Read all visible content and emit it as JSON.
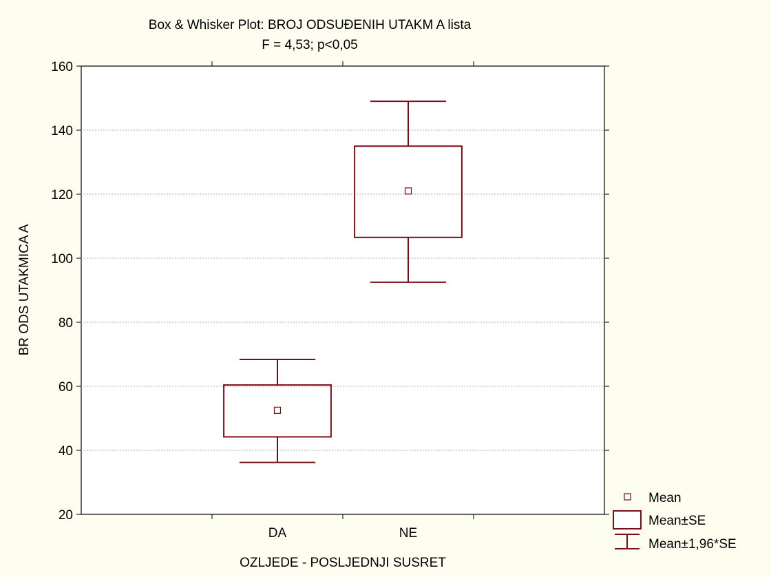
{
  "chart_data": {
    "type": "box",
    "title": "Box & Whisker Plot: BROJ ODSUĐENIH UTAKM A lista",
    "subtitle": "F = 4,53; p<0,05",
    "xlabel": "OZLJEDE - POSLJEDNJI SUSRET",
    "ylabel": "BR ODS UTAKMICA A",
    "ylim": [
      20,
      160
    ],
    "yticks": [
      20,
      40,
      60,
      80,
      100,
      120,
      140,
      160
    ],
    "grid": true,
    "categories": [
      "DA",
      "NE"
    ],
    "groups": [
      {
        "category": "DA",
        "mean": 52.5,
        "se_low": 44.2,
        "se_high": 60.4,
        "ci_low": 36.2,
        "ci_high": 68.4
      },
      {
        "category": "NE",
        "mean": 121.0,
        "se_low": 106.5,
        "se_high": 135.0,
        "ci_low": 92.5,
        "ci_high": 149.0
      }
    ],
    "legend_position": "bottom-right",
    "legend": [
      "Mean",
      "Mean±SE",
      "Mean±1,96*SE"
    ],
    "color": "#7a0e14"
  }
}
